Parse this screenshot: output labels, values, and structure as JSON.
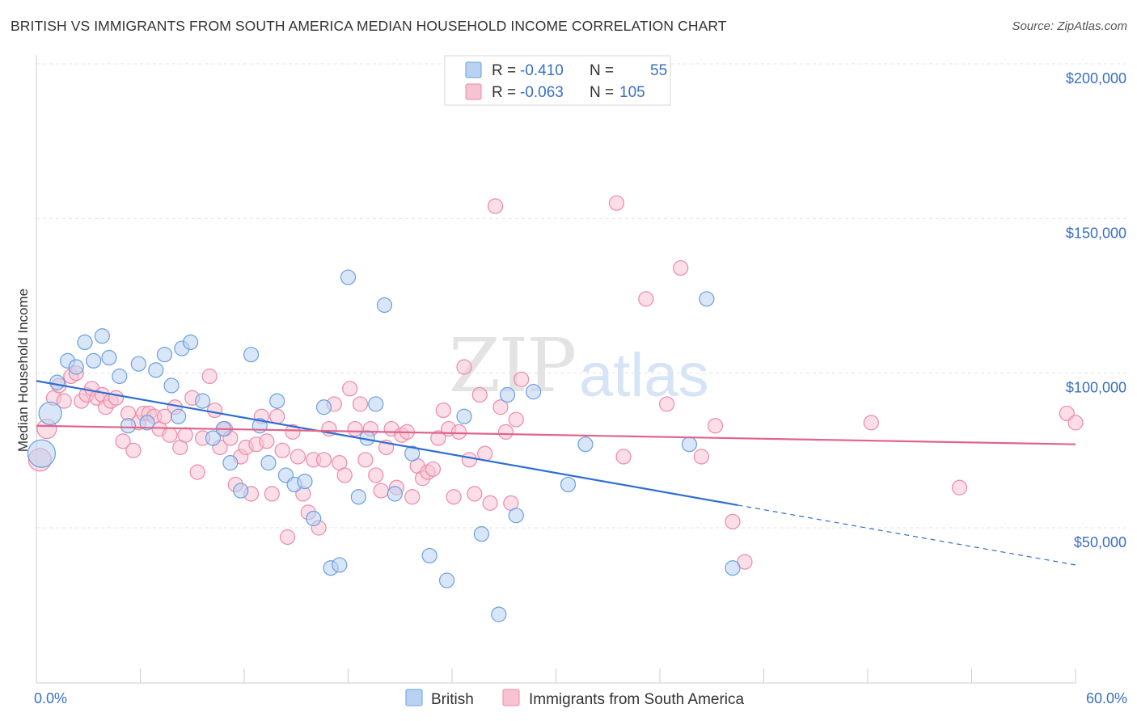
{
  "title": "BRITISH VS IMMIGRANTS FROM SOUTH AMERICA MEDIAN HOUSEHOLD INCOME CORRELATION CHART",
  "source": "Source: ZipAtlas.com",
  "watermark": {
    "zip": "ZIP",
    "atlas": "atlas"
  },
  "colors": {
    "british": "#6b9fe0",
    "british_fill": "#b8d2f2",
    "british_line": "#2f6fd0",
    "immigrants": "#ec8aa8",
    "immigrants_fill": "#f7c3d3",
    "immigrants_line": "#e0648c",
    "axis_label": "#3a6fc4"
  },
  "legend_top": {
    "rows": [
      {
        "r_label": "R =",
        "r_value": "-0.410",
        "n_label": "N =",
        "n_value": "55"
      },
      {
        "r_label": "R =",
        "r_value": "-0.063",
        "n_label": "N =",
        "n_value": "105"
      }
    ]
  },
  "legend_bottom": {
    "items": [
      "British",
      "Immigrants from South America"
    ]
  },
  "chart_data": {
    "type": "scatter",
    "title": "BRITISH VS IMMIGRANTS FROM SOUTH AMERICA MEDIAN HOUSEHOLD INCOME CORRELATION CHART",
    "ylabel": "Median Household Income",
    "xlabel": "",
    "xlim": [
      0,
      60
    ],
    "ylim": [
      0,
      210000
    ],
    "x_tick_labels": [
      "0.0%",
      "60.0%"
    ],
    "y_ticks": [
      50000,
      100000,
      150000,
      200000
    ],
    "y_tick_labels": [
      "$50,000",
      "$100,000",
      "$150,000",
      "$200,000"
    ],
    "grid": true,
    "legend_placement": "top-center",
    "series": [
      {
        "name": "British",
        "R": -0.41,
        "N": 55,
        "trend": {
          "x0": 0,
          "y0": 97500,
          "x1": 60,
          "y1": 38000,
          "solid_until": 40.5
        },
        "points": [
          [
            0.3,
            74000
          ],
          [
            0.8,
            87000
          ],
          [
            1.2,
            97000
          ],
          [
            1.8,
            104000
          ],
          [
            2.3,
            102000
          ],
          [
            2.8,
            110000
          ],
          [
            3.3,
            104000
          ],
          [
            3.8,
            112000
          ],
          [
            4.2,
            105000
          ],
          [
            4.8,
            99000
          ],
          [
            5.3,
            83000
          ],
          [
            5.9,
            103000
          ],
          [
            6.4,
            84000
          ],
          [
            6.9,
            101000
          ],
          [
            7.4,
            106000
          ],
          [
            7.8,
            96000
          ],
          [
            8.2,
            86000
          ],
          [
            8.4,
            108000
          ],
          [
            8.9,
            110000
          ],
          [
            9.6,
            91000
          ],
          [
            10.2,
            79000
          ],
          [
            10.8,
            82000
          ],
          [
            11.2,
            71000
          ],
          [
            11.8,
            62000
          ],
          [
            12.4,
            106000
          ],
          [
            12.9,
            83000
          ],
          [
            13.4,
            71000
          ],
          [
            13.9,
            91000
          ],
          [
            14.4,
            67000
          ],
          [
            14.9,
            64000
          ],
          [
            15.5,
            65000
          ],
          [
            16.0,
            53000
          ],
          [
            16.6,
            89000
          ],
          [
            17.0,
            37000
          ],
          [
            17.5,
            38000
          ],
          [
            18.0,
            131000
          ],
          [
            18.6,
            60000
          ],
          [
            19.1,
            79000
          ],
          [
            19.6,
            90000
          ],
          [
            20.1,
            122000
          ],
          [
            20.7,
            61000
          ],
          [
            21.7,
            74000
          ],
          [
            22.7,
            41000
          ],
          [
            23.7,
            33000
          ],
          [
            24.7,
            86000
          ],
          [
            25.7,
            48000
          ],
          [
            26.7,
            22000
          ],
          [
            27.2,
            93000
          ],
          [
            27.7,
            54000
          ],
          [
            28.7,
            94000
          ],
          [
            30.7,
            64000
          ],
          [
            31.7,
            77000
          ],
          [
            37.7,
            77000
          ],
          [
            38.7,
            124000
          ],
          [
            40.2,
            37000
          ]
        ]
      },
      {
        "name": "Immigrants from South America",
        "R": -0.063,
        "N": 105,
        "trend": {
          "x0": 0,
          "y0": 83000,
          "x1": 60,
          "y1": 77000
        },
        "points": [
          [
            0.2,
            72000
          ],
          [
            0.6,
            82000
          ],
          [
            1.0,
            92000
          ],
          [
            1.3,
            96000
          ],
          [
            1.6,
            91000
          ],
          [
            2.0,
            99000
          ],
          [
            2.3,
            100000
          ],
          [
            2.6,
            91000
          ],
          [
            2.9,
            93000
          ],
          [
            3.2,
            95000
          ],
          [
            3.5,
            92000
          ],
          [
            3.8,
            93000
          ],
          [
            4.0,
            89000
          ],
          [
            4.3,
            91000
          ],
          [
            4.6,
            92000
          ],
          [
            5.0,
            78000
          ],
          [
            5.3,
            87000
          ],
          [
            5.6,
            75000
          ],
          [
            5.9,
            84000
          ],
          [
            6.2,
            87000
          ],
          [
            6.5,
            87000
          ],
          [
            6.8,
            86000
          ],
          [
            7.1,
            82000
          ],
          [
            7.4,
            86000
          ],
          [
            7.7,
            80000
          ],
          [
            8.0,
            89000
          ],
          [
            8.3,
            76000
          ],
          [
            8.6,
            80000
          ],
          [
            9.0,
            92000
          ],
          [
            9.3,
            68000
          ],
          [
            9.6,
            79000
          ],
          [
            10.0,
            99000
          ],
          [
            10.3,
            88000
          ],
          [
            10.6,
            76000
          ],
          [
            10.9,
            82000
          ],
          [
            11.2,
            79000
          ],
          [
            11.5,
            64000
          ],
          [
            11.8,
            73000
          ],
          [
            12.1,
            76000
          ],
          [
            12.4,
            61000
          ],
          [
            12.7,
            77000
          ],
          [
            13.0,
            86000
          ],
          [
            13.3,
            78000
          ],
          [
            13.6,
            61000
          ],
          [
            13.9,
            86000
          ],
          [
            14.2,
            75000
          ],
          [
            14.5,
            47000
          ],
          [
            14.8,
            81000
          ],
          [
            15.1,
            73000
          ],
          [
            15.4,
            61000
          ],
          [
            15.7,
            55000
          ],
          [
            16.0,
            72000
          ],
          [
            16.3,
            50000
          ],
          [
            16.6,
            72000
          ],
          [
            16.9,
            82000
          ],
          [
            17.2,
            90000
          ],
          [
            17.5,
            71000
          ],
          [
            17.8,
            67000
          ],
          [
            18.1,
            95000
          ],
          [
            18.4,
            82000
          ],
          [
            18.7,
            90000
          ],
          [
            19.0,
            72000
          ],
          [
            19.3,
            82000
          ],
          [
            19.6,
            67000
          ],
          [
            19.9,
            62000
          ],
          [
            20.2,
            76000
          ],
          [
            20.5,
            82000
          ],
          [
            20.8,
            63000
          ],
          [
            21.1,
            80000
          ],
          [
            21.4,
            81000
          ],
          [
            21.7,
            60000
          ],
          [
            22.0,
            70000
          ],
          [
            22.3,
            66000
          ],
          [
            22.6,
            68000
          ],
          [
            22.9,
            69000
          ],
          [
            23.2,
            79000
          ],
          [
            23.5,
            88000
          ],
          [
            23.8,
            82000
          ],
          [
            24.1,
            60000
          ],
          [
            24.4,
            81000
          ],
          [
            24.7,
            102000
          ],
          [
            25.0,
            72000
          ],
          [
            25.3,
            61000
          ],
          [
            25.6,
            93000
          ],
          [
            25.9,
            74000
          ],
          [
            26.2,
            58000
          ],
          [
            26.5,
            154000
          ],
          [
            26.8,
            89000
          ],
          [
            27.1,
            81000
          ],
          [
            27.4,
            58000
          ],
          [
            27.7,
            85000
          ],
          [
            28.0,
            98000
          ],
          [
            33.5,
            155000
          ],
          [
            33.9,
            73000
          ],
          [
            35.2,
            124000
          ],
          [
            36.4,
            90000
          ],
          [
            37.2,
            134000
          ],
          [
            38.4,
            73000
          ],
          [
            39.2,
            83000
          ],
          [
            40.2,
            52000
          ],
          [
            40.9,
            39000
          ],
          [
            48.2,
            84000
          ],
          [
            53.3,
            63000
          ],
          [
            59.5,
            87000
          ],
          [
            60.0,
            84000
          ]
        ]
      }
    ]
  }
}
